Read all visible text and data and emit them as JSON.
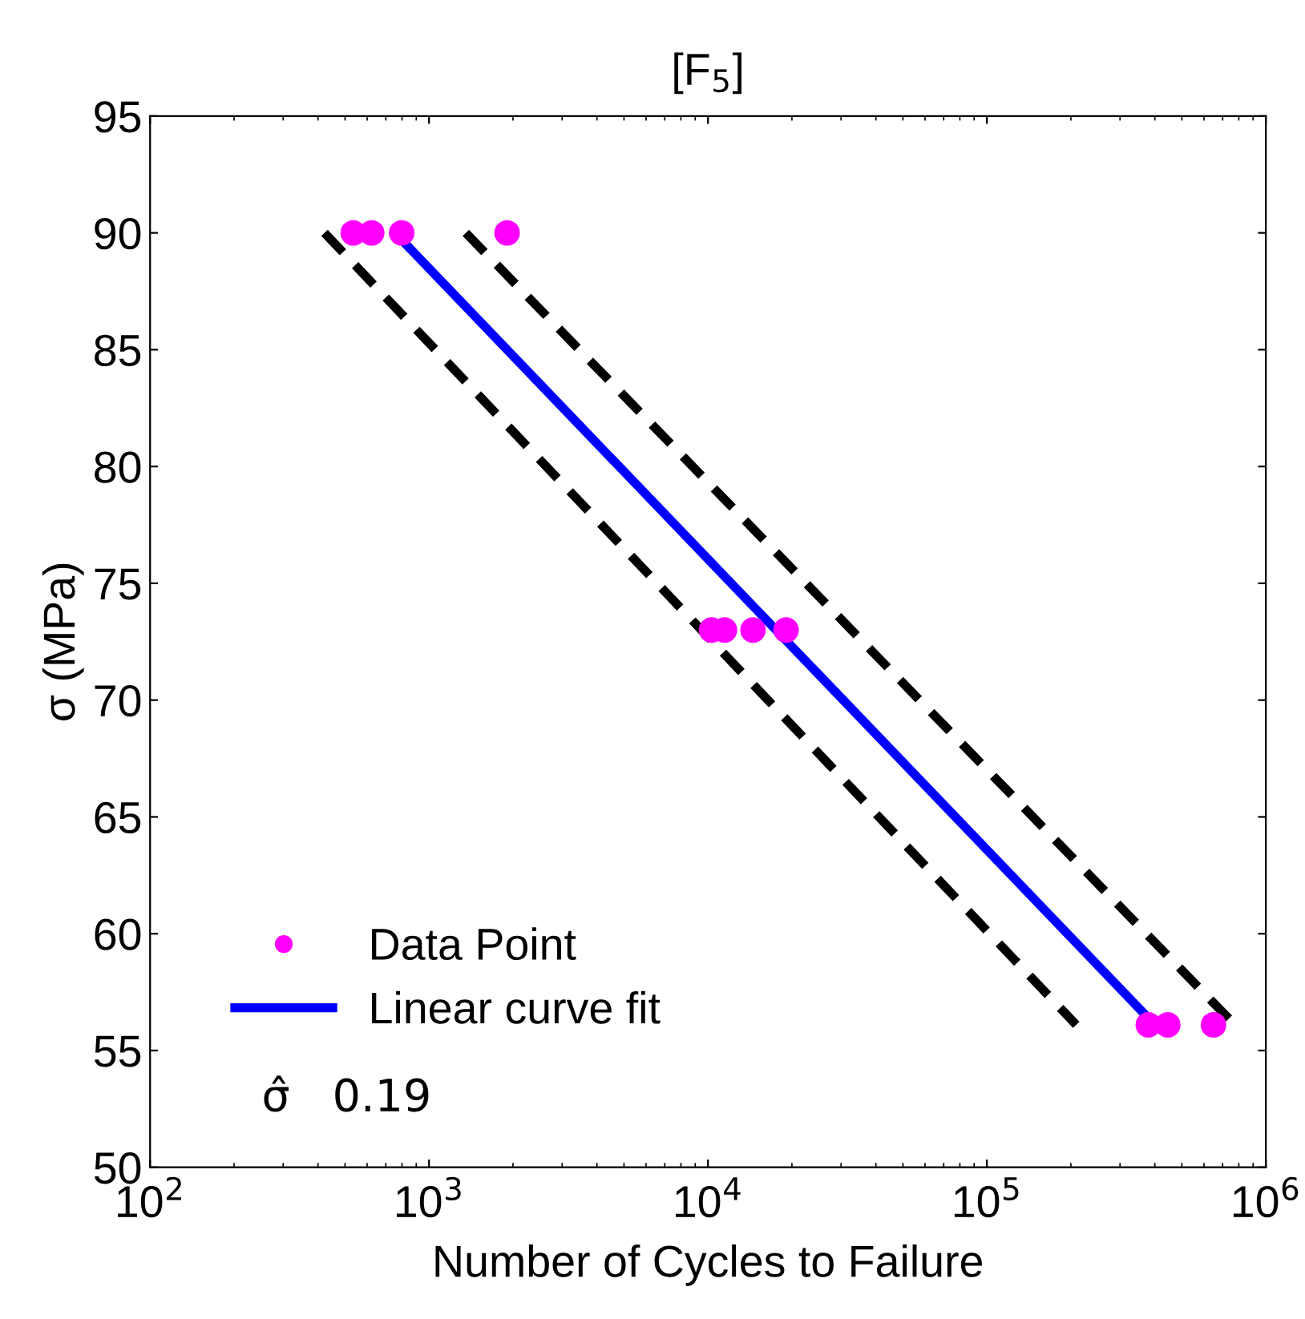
{
  "chart_data": {
    "type": "scatter",
    "title": "[F$_{5}$]",
    "xlabel": "Number of Cycles to Failure",
    "ylabel": "σ (MPa)",
    "log": "x",
    "xlim": [
      100,
      1000000
    ],
    "ylim": [
      50,
      95
    ],
    "xticks": [
      {
        "value": 100,
        "label": "10$^{2}$"
      },
      {
        "value": 1000,
        "label": "10$^{3}$"
      },
      {
        "value": 10000,
        "label": "10$^{4}$"
      },
      {
        "value": 100000,
        "label": "10$^{5}$"
      },
      {
        "value": 1000000,
        "label": "10$^{6}$"
      }
    ],
    "yticks": [
      50,
      55,
      60,
      65,
      70,
      75,
      80,
      85,
      90,
      95
    ],
    "grid": false,
    "legend": "bottom left",
    "series": [
      {
        "name": "Data Point",
        "marker": "circle",
        "color": "#ff00ff",
        "x": [
          535,
          623,
          798,
          1905,
          10300,
          11460,
          14500,
          19060,
          379000,
          445000,
          649000
        ],
        "values": [
          90,
          90,
          90,
          90,
          73,
          73,
          73,
          73,
          56.1,
          56.1,
          56.1
        ]
      },
      {
        "name": "Linear curve fit",
        "type": "line",
        "line_style": "solid",
        "color": "#0000ff",
        "x": [
          755,
          400000
        ],
        "values": [
          90,
          56.1
        ]
      },
      {
        "type": "line",
        "line_style": "dashed",
        "color": "#000000",
        "x": [
          422,
          209000
        ],
        "values": [
          90,
          56.1
        ]
      },
      {
        "type": "line",
        "line_style": "dashed",
        "color": "#000000",
        "x": [
          1355,
          774000
        ],
        "values": [
          90,
          56.1
        ]
      }
    ],
    "annotations": [
      "σ̂   0.19"
    ]
  }
}
